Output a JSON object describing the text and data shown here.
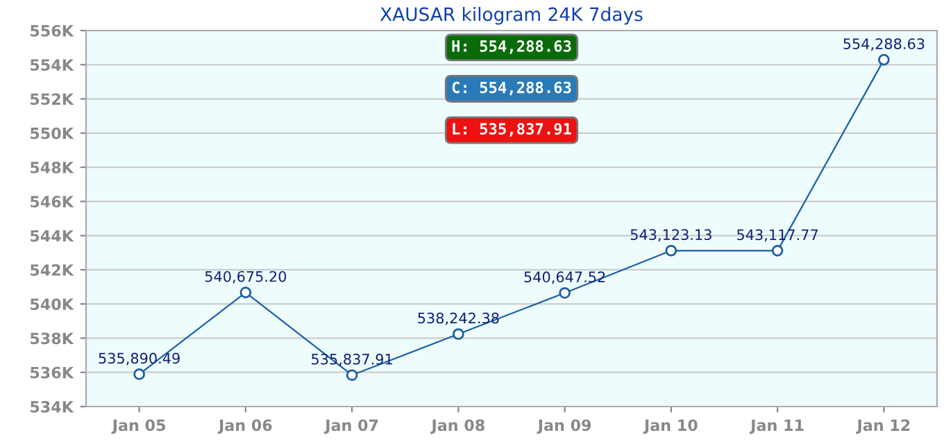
{
  "chart_data": {
    "type": "line",
    "title": "XAUSAR kilogram 24K 7days",
    "categories": [
      "Jan 05",
      "Jan 06",
      "Jan 07",
      "Jan 08",
      "Jan 09",
      "Jan 10",
      "Jan 11",
      "Jan 12"
    ],
    "values": [
      535890.49,
      540675.2,
      535837.91,
      538242.38,
      540647.52,
      543123.13,
      543117.77,
      554288.63
    ],
    "value_labels": [
      "535,890.49",
      "540,675.20",
      "535,837.91",
      "538,242.38",
      "540,647.52",
      "543,123.13",
      "543,117.77",
      "554,288.63"
    ],
    "color": "#1a5fa6",
    "marker": "circle",
    "line_style": "solid",
    "grid": "y",
    "ylim": [
      534000,
      556000
    ],
    "yticks": [
      {
        "value": 534000,
        "label": "534K"
      },
      {
        "value": 536000,
        "label": "536K"
      },
      {
        "value": 538000,
        "label": "538K"
      },
      {
        "value": 540000,
        "label": "540K"
      },
      {
        "value": 542000,
        "label": "542K"
      },
      {
        "value": 544000,
        "label": "544K"
      },
      {
        "value": 546000,
        "label": "546K"
      },
      {
        "value": 548000,
        "label": "548K"
      },
      {
        "value": 550000,
        "label": "550K"
      },
      {
        "value": 552000,
        "label": "552K"
      },
      {
        "value": 554000,
        "label": "554K"
      },
      {
        "value": 556000,
        "label": "556K"
      }
    ],
    "annotations": [
      "H: 554,288.63",
      "C: 554,288.63",
      "L: 535,837.91"
    ]
  }
}
